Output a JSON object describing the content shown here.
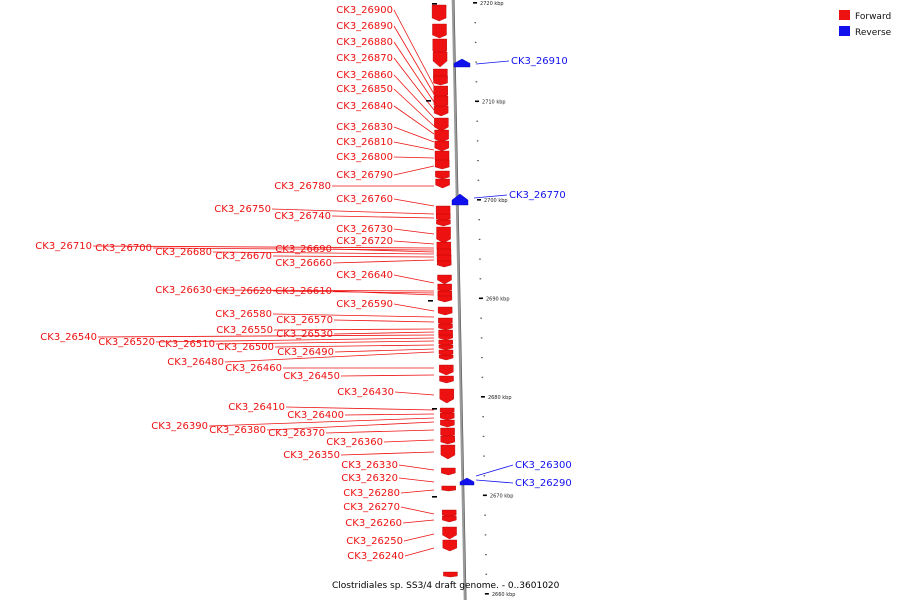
{
  "colors": {
    "forward": "#ee1111",
    "reverse": "#1111ee",
    "backbone": "#999999",
    "ink": "#000000"
  },
  "legend": [
    {
      "key": "forward",
      "label": "Forward"
    },
    {
      "key": "reverse",
      "label": "Reverse"
    }
  ],
  "caption": "Clostridiales sp. SS3/4 draft genome. - 0..3601020",
  "ticks": [
    {
      "pos": 2720,
      "label": "2720 kbp"
    },
    {
      "pos": 2710,
      "label": "2710 kbp"
    },
    {
      "pos": 2700,
      "label": "2700 kbp"
    },
    {
      "pos": 2690,
      "label": "2690 kbp"
    },
    {
      "pos": 2680,
      "label": "2680 kbp"
    },
    {
      "pos": 2670,
      "label": "2670 kbp"
    },
    {
      "pos": 2660,
      "label": "2660 kbp"
    }
  ],
  "genes": [
    {
      "name": "CK3_26900",
      "strand": "forward"
    },
    {
      "name": "CK3_26890",
      "strand": "forward"
    },
    {
      "name": "CK3_26880",
      "strand": "forward"
    },
    {
      "name": "CK3_26870",
      "strand": "forward"
    },
    {
      "name": "CK3_26910",
      "strand": "reverse"
    },
    {
      "name": "CK3_26860",
      "strand": "forward"
    },
    {
      "name": "CK3_26850",
      "strand": "forward"
    },
    {
      "name": "CK3_26840",
      "strand": "forward"
    },
    {
      "name": "CK3_26830",
      "strand": "forward"
    },
    {
      "name": "CK3_26810",
      "strand": "forward"
    },
    {
      "name": "CK3_26800",
      "strand": "forward"
    },
    {
      "name": "CK3_26790",
      "strand": "forward"
    },
    {
      "name": "CK3_26780",
      "strand": "forward"
    },
    {
      "name": "CK3_26770",
      "strand": "reverse"
    },
    {
      "name": "CK3_26760",
      "strand": "forward"
    },
    {
      "name": "CK3_26750",
      "strand": "forward"
    },
    {
      "name": "CK3_26740",
      "strand": "forward"
    },
    {
      "name": "CK3_26730",
      "strand": "forward"
    },
    {
      "name": "CK3_26720",
      "strand": "forward"
    },
    {
      "name": "CK3_26710",
      "strand": "forward"
    },
    {
      "name": "CK3_26700",
      "strand": "forward"
    },
    {
      "name": "CK3_26690",
      "strand": "forward"
    },
    {
      "name": "CK3_26680",
      "strand": "forward"
    },
    {
      "name": "CK3_26670",
      "strand": "forward"
    },
    {
      "name": "CK3_26660",
      "strand": "forward"
    },
    {
      "name": "CK3_26640",
      "strand": "forward"
    },
    {
      "name": "CK3_26630",
      "strand": "forward"
    },
    {
      "name": "CK3_26620",
      "strand": "forward"
    },
    {
      "name": "CK3_26610",
      "strand": "forward"
    },
    {
      "name": "CK3_26590",
      "strand": "forward"
    },
    {
      "name": "CK3_26580",
      "strand": "forward"
    },
    {
      "name": "CK3_26570",
      "strand": "forward"
    },
    {
      "name": "CK3_26550",
      "strand": "forward"
    },
    {
      "name": "CK3_26530",
      "strand": "forward"
    },
    {
      "name": "CK3_26540",
      "strand": "forward"
    },
    {
      "name": "CK3_26520",
      "strand": "forward"
    },
    {
      "name": "CK3_26510",
      "strand": "forward"
    },
    {
      "name": "CK3_26500",
      "strand": "forward"
    },
    {
      "name": "CK3_26490",
      "strand": "forward"
    },
    {
      "name": "CK3_26480",
      "strand": "forward"
    },
    {
      "name": "CK3_26460",
      "strand": "forward"
    },
    {
      "name": "CK3_26450",
      "strand": "forward"
    },
    {
      "name": "CK3_26430",
      "strand": "forward"
    },
    {
      "name": "CK3_26410",
      "strand": "forward"
    },
    {
      "name": "CK3_26400",
      "strand": "forward"
    },
    {
      "name": "CK3_26390",
      "strand": "forward"
    },
    {
      "name": "CK3_26380",
      "strand": "forward"
    },
    {
      "name": "CK3_26370",
      "strand": "forward"
    },
    {
      "name": "CK3_26360",
      "strand": "forward"
    },
    {
      "name": "CK3_26350",
      "strand": "forward"
    },
    {
      "name": "CK3_26330",
      "strand": "forward"
    },
    {
      "name": "CK3_26300",
      "strand": "reverse"
    },
    {
      "name": "CK3_26320",
      "strand": "forward"
    },
    {
      "name": "CK3_26290",
      "strand": "reverse"
    },
    {
      "name": "CK3_26280",
      "strand": "forward"
    },
    {
      "name": "CK3_26270",
      "strand": "forward"
    },
    {
      "name": "CK3_26260",
      "strand": "forward"
    },
    {
      "name": "CK3_26250",
      "strand": "forward"
    },
    {
      "name": "CK3_26240",
      "strand": "forward"
    }
  ]
}
